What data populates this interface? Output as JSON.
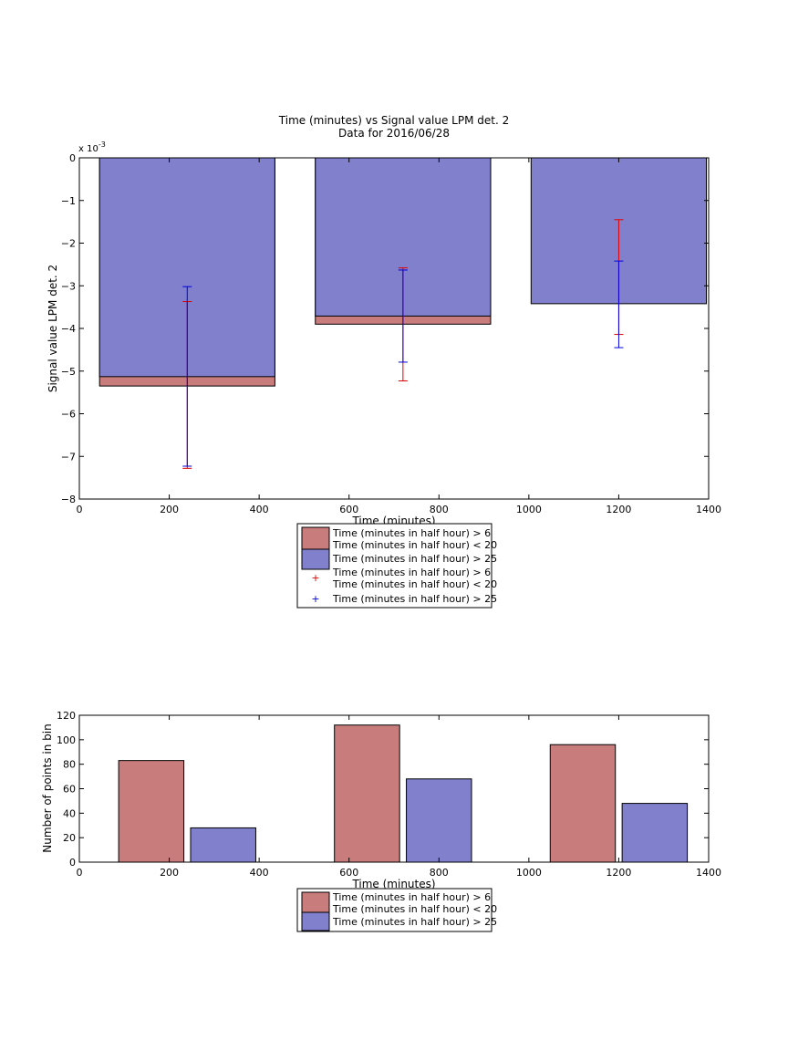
{
  "chart_data": [
    {
      "type": "bar",
      "title": "Time (minutes) vs Signal value LPM det. 2",
      "subtitle": "Data for 2016/06/28",
      "xlabel": "Time (minutes)",
      "ylabel": "Signal value LPM det. 2",
      "exponent_label": "x 10",
      "exponent_power": "-3",
      "xlim": [
        0,
        1400
      ],
      "ylim": [
        -8,
        0
      ],
      "xticks": [
        "0",
        "200",
        "400",
        "600",
        "800",
        "1000",
        "1200",
        "1400"
      ],
      "yticks": [
        "0",
        "−1",
        "−2",
        "−3",
        "−4",
        "−5",
        "−6",
        "−7",
        "−8"
      ],
      "grid": false,
      "legend_position": "below-axes",
      "bar_groups": [
        {
          "x_center": 240,
          "width": 390
        },
        {
          "x_center": 720,
          "width": 390
        },
        {
          "x_center": 1200,
          "width": 390
        }
      ],
      "series": [
        {
          "name_line1": "Time (minutes in half hour) > 6",
          "name_line2": "Time (minutes in half hour) < 20",
          "color": "#c97c7c",
          "values": [
            -5.35,
            -3.9,
            null
          ]
        },
        {
          "name_line1": "Time (minutes in half hour) > 25",
          "color": "#8080cc",
          "values": [
            -5.13,
            -3.71,
            -3.42
          ]
        }
      ],
      "errorbars": [
        {
          "name_line1": "Time (minutes in half hour) > 6",
          "name_line2": "Time (minutes in half hour) < 20",
          "color": "#e00000",
          "x": [
            240,
            720,
            1200
          ],
          "lower": [
            -7.28,
            -5.23,
            -4.14
          ],
          "upper": [
            -3.37,
            -2.58,
            -1.45
          ]
        },
        {
          "name_line1": "Time (minutes in half hour) > 25",
          "color": "#0000e0",
          "x": [
            240,
            720,
            1200
          ],
          "lower": [
            -7.23,
            -4.79,
            -4.45
          ],
          "upper": [
            -3.02,
            -2.63,
            -2.42
          ]
        }
      ]
    },
    {
      "type": "bar",
      "xlabel": "Time (minutes)",
      "ylabel": "Number of points in bin",
      "xlim": [
        0,
        1400
      ],
      "ylim": [
        0,
        120
      ],
      "xticks": [
        "0",
        "200",
        "400",
        "600",
        "800",
        "1000",
        "1200",
        "1400"
      ],
      "yticks": [
        "0",
        "20",
        "40",
        "60",
        "80",
        "100",
        "120"
      ],
      "grid": false,
      "legend_position": "below-axes",
      "series": [
        {
          "name_line1": "Time (minutes in half hour) > 6",
          "name_line2": "Time (minutes in half hour) < 20",
          "color": "#c97c7c",
          "x": [
            160,
            640,
            1120
          ],
          "bar_width": 145,
          "values": [
            83,
            112,
            96
          ]
        },
        {
          "name_line1": "Time (minutes in half hour) > 25",
          "color": "#8080cc",
          "x": [
            320,
            800,
            1280
          ],
          "bar_width": 145,
          "values": [
            28,
            68,
            48
          ]
        }
      ]
    }
  ]
}
